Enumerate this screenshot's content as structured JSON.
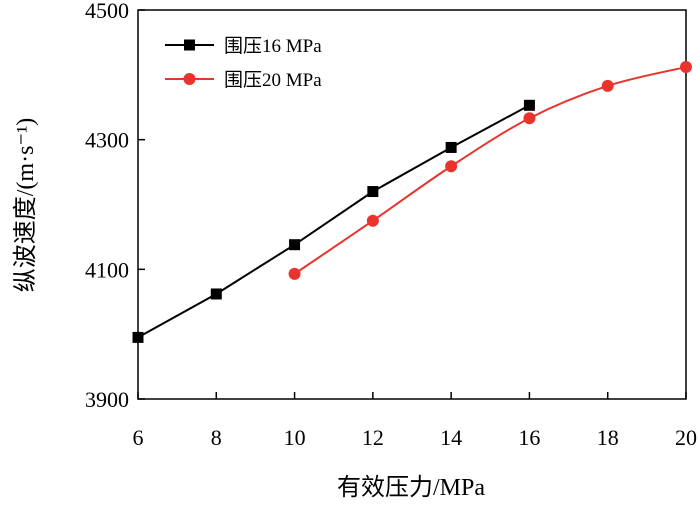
{
  "chart_data": {
    "type": "line",
    "xlabel": "有效压力/MPa",
    "ylabel": "纵波速度/(m·s⁻¹)",
    "xlim": [
      6,
      20
    ],
    "ylim": [
      3900,
      4500
    ],
    "x_ticks": [
      "6",
      "8",
      "10",
      "12",
      "14",
      "16",
      "18",
      "20"
    ],
    "y_ticks": [
      "3900",
      "4100",
      "4300",
      "4500"
    ],
    "legend_position": "top-left",
    "grid": false,
    "series": [
      {
        "name": "围压16 MPa",
        "color": "#000000",
        "marker": "square",
        "smooth": false,
        "x": [
          6,
          8,
          10,
          12,
          14,
          16
        ],
        "y": [
          3995,
          4062,
          4138,
          4220,
          4288,
          4353
        ]
      },
      {
        "name": "围压20 MPa",
        "color": "#e8342d",
        "marker": "circle",
        "smooth": true,
        "x": [
          10,
          12,
          14,
          16,
          18,
          20
        ],
        "y": [
          4093,
          4175,
          4259,
          4333,
          4383,
          4412
        ]
      }
    ]
  }
}
